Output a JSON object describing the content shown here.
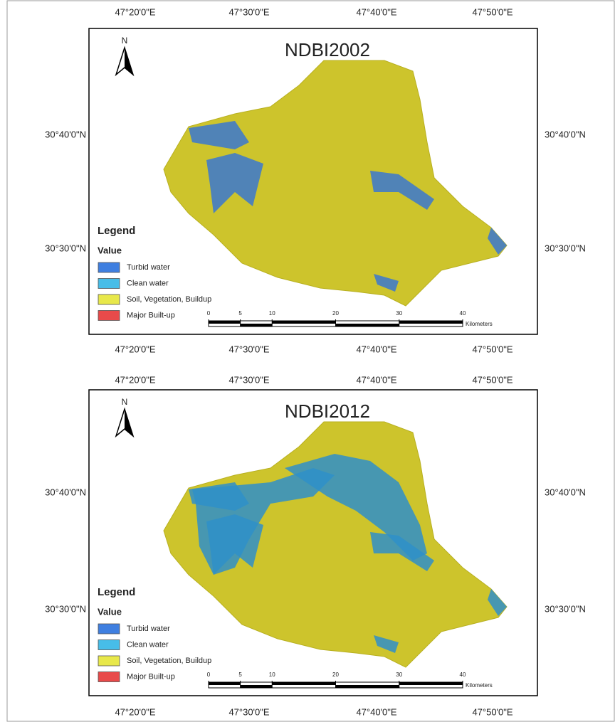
{
  "maps": [
    {
      "title": "NDBI2002",
      "north": "N",
      "top_labels": [
        "47°20'0\"E",
        "47°30'0\"E",
        "47°40'0\"E",
        "47°50'0\"E"
      ],
      "bottom_labels": [
        "47°20'0\"E",
        "47°30'0\"E",
        "47°40'0\"E",
        "47°50'0\"E"
      ],
      "left_labels": [
        "30°40'0\"N",
        "30°30'0\"N"
      ],
      "right_labels": [
        "30°40'0\"N",
        "30°30'0\"N"
      ],
      "legend": {
        "title": "Legend",
        "subtitle": "Value",
        "items": [
          {
            "label": "Turbid water",
            "color": "#3f7fe0"
          },
          {
            "label": "Clean water",
            "color": "#47bde8"
          },
          {
            "label": "Soil, Vegetation, Buildup",
            "color": "#e8e84a"
          },
          {
            "label": "Major Built-up",
            "color": "#e84a4a"
          }
        ]
      },
      "scale": {
        "ticks": [
          0,
          5,
          10,
          20,
          30,
          40
        ],
        "unit": "Kilometers"
      }
    },
    {
      "title": "NDBI2012",
      "north": "N",
      "top_labels": [
        "47°20'0\"E",
        "47°30'0\"E",
        "47°40'0\"E",
        "47°50'0\"E"
      ],
      "bottom_labels": [
        "47°20'0\"E",
        "47°30'0\"E",
        "47°40'0\"E",
        "47°50'0\"E"
      ],
      "left_labels": [
        "30°40'0\"N",
        "30°30'0\"N"
      ],
      "right_labels": [
        "30°40'0\"N",
        "30°30'0\"N"
      ],
      "legend": {
        "title": "Legend",
        "subtitle": "Value",
        "items": [
          {
            "label": "Turbid water",
            "color": "#3f7fe0"
          },
          {
            "label": "Clean water",
            "color": "#47bde8"
          },
          {
            "label": "Soil, Vegetation, Buildup",
            "color": "#e8e84a"
          },
          {
            "label": "Major Built-up",
            "color": "#e84a4a"
          }
        ]
      },
      "scale": {
        "ticks": [
          0,
          5,
          10,
          20,
          30,
          40
        ],
        "unit": "Kilometers"
      }
    }
  ]
}
